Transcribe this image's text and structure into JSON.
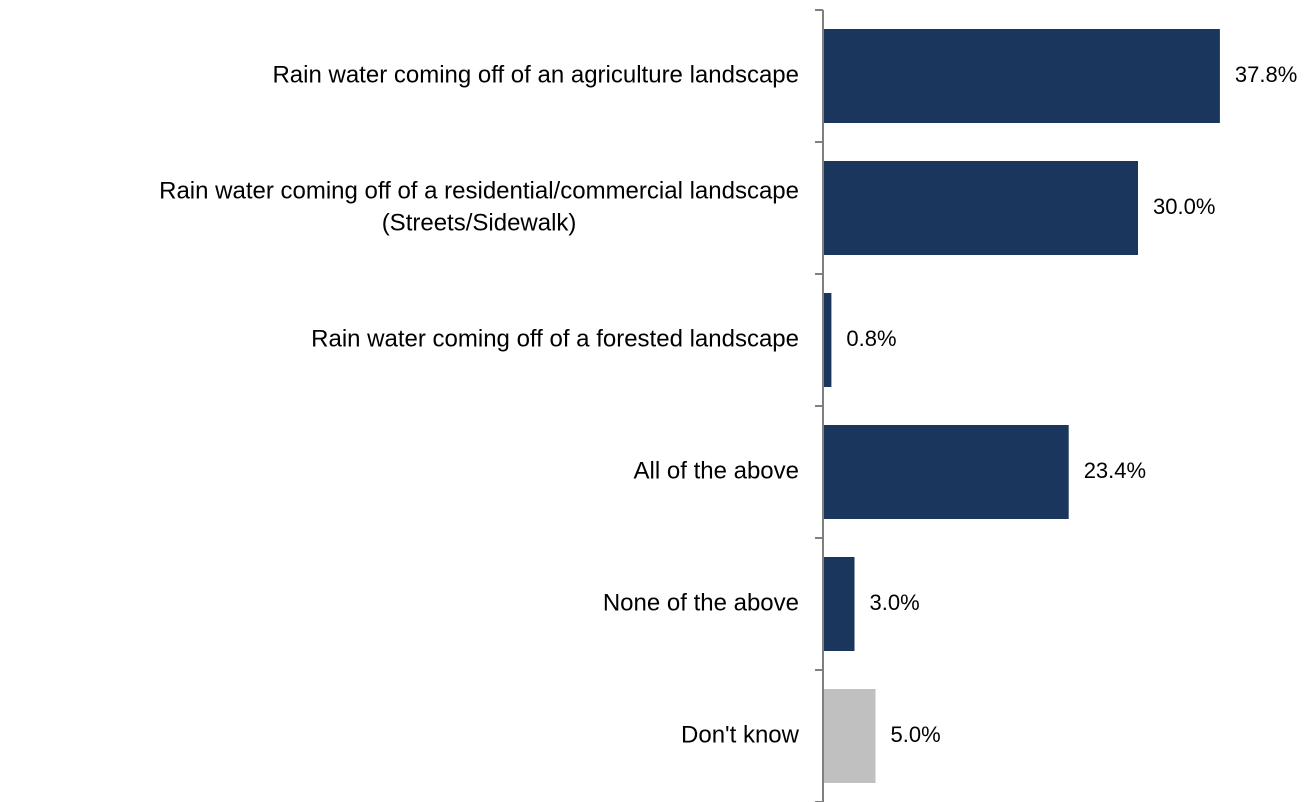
{
  "chart_data": {
    "type": "bar",
    "orientation": "horizontal",
    "title": "",
    "xlabel": "",
    "ylabel": "",
    "xlim": [
      0,
      40
    ],
    "grid": false,
    "legend": "none",
    "value_format": "percent-1dp",
    "categories": [
      [
        "Rain water coming off of an agriculture landscape"
      ],
      [
        "Rain water coming off of a residential/commercial landscape",
        "(Streets/Sidewalk)"
      ],
      [
        "Rain water coming off of a forested landscape"
      ],
      [
        "All of the above"
      ],
      [
        "None of the above"
      ],
      [
        "Don't know"
      ]
    ],
    "values": [
      37.8,
      30.0,
      0.8,
      23.4,
      3.0,
      5.0
    ],
    "value_labels": [
      "37.8%",
      "30.0%",
      "0.8%",
      "23.4%",
      "3.0%",
      "5.0%"
    ],
    "colors": [
      "#1a365d",
      "#1a365d",
      "#1a365d",
      "#1a365d",
      "#1a365d",
      "#c0c0c0"
    ],
    "axis_color": "#7f7f7f"
  }
}
